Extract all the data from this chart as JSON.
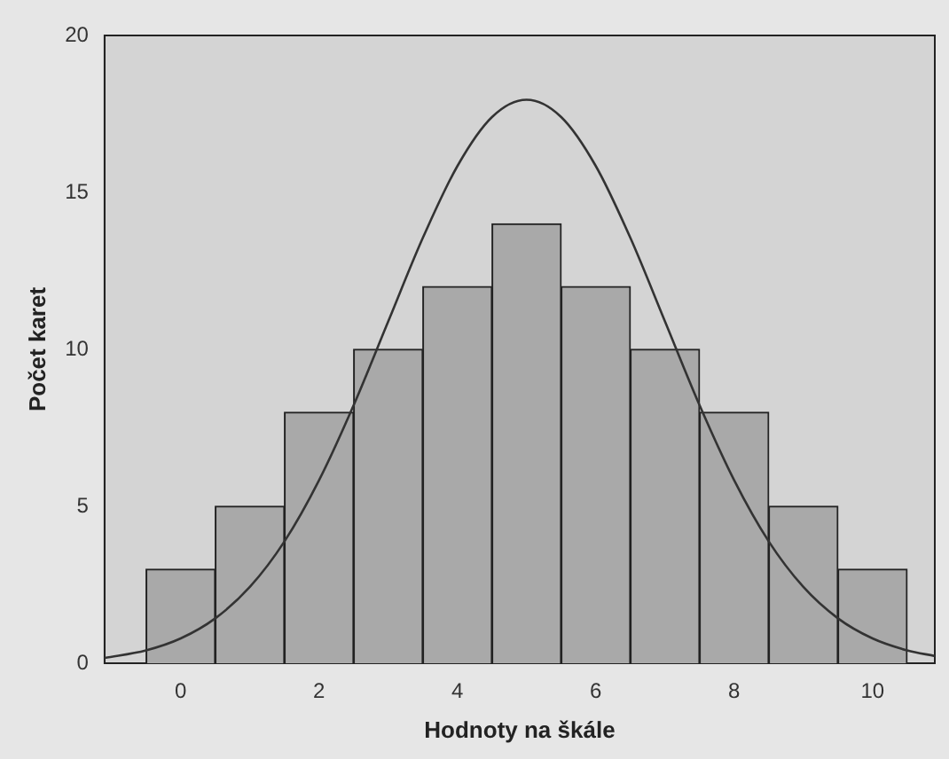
{
  "chart_data": {
    "type": "histogram",
    "xlabel": "Hodnoty na škále",
    "ylabel": "Počet karet",
    "bins": [
      -0.5,
      0.5,
      1.5,
      2.5,
      3.5,
      4.5,
      5.5,
      6.5,
      7.5,
      8.5,
      9.5,
      10.5
    ],
    "values": [
      3,
      5,
      8,
      10,
      12,
      14,
      12,
      10,
      8,
      5,
      3
    ],
    "color": "#a9a9a9",
    "series": [
      {
        "type": "line",
        "color": "#333333",
        "x": [
          -1.1,
          -0.5,
          0,
          0.5,
          1,
          1.5,
          2,
          2.5,
          3,
          3.5,
          4,
          4.5,
          5,
          5.5,
          6,
          6.5,
          7,
          7.5,
          8,
          8.5,
          9,
          9.5,
          10,
          10.5,
          10.9
        ],
        "values": [
          0.17,
          0.41,
          0.79,
          1.43,
          2.43,
          3.88,
          5.83,
          8.22,
          10.89,
          13.55,
          15.84,
          17.4,
          17.95,
          17.4,
          15.84,
          13.55,
          10.89,
          8.22,
          5.83,
          3.88,
          2.43,
          1.43,
          0.79,
          0.41,
          0.23
        ]
      }
    ],
    "xlim": [
      -1.1,
      10.9
    ],
    "xticks": [
      0,
      2,
      4,
      6,
      8,
      10
    ],
    "ylim": [
      0,
      20
    ],
    "yticks": [
      0,
      5,
      10,
      15,
      20
    ],
    "grid": false,
    "legend": false,
    "marker": "none",
    "line_style": "solid"
  }
}
